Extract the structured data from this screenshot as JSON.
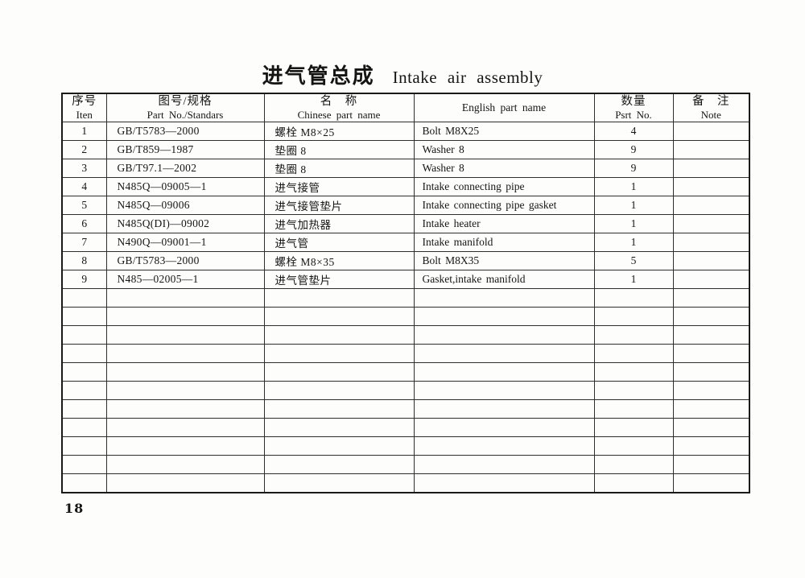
{
  "page": {
    "title_cn": "进气管总成",
    "title_en": "Intake air assembly",
    "page_number": "18"
  },
  "table": {
    "headers": {
      "item": {
        "cn": "序号",
        "en": "Iten"
      },
      "part_no": {
        "cn": "图号/规格",
        "en": "Part No./Standars"
      },
      "name_cn": {
        "cn": "名　称",
        "en": "Chinese part name"
      },
      "name_en": {
        "en": "English part name"
      },
      "qty": {
        "cn": "数量",
        "en": "Psrt No."
      },
      "note": {
        "cn": "备　注",
        "en": "Note"
      }
    },
    "rows": [
      {
        "item": "1",
        "part_no": "GB/T5783—2000",
        "name_cn": "螺栓 M8×25",
        "name_en": "Bolt M8X25",
        "qty": "4",
        "note": ""
      },
      {
        "item": "2",
        "part_no": "GB/T859—1987",
        "name_cn": "垫圈 8",
        "name_en": "Washer 8",
        "qty": "9",
        "note": ""
      },
      {
        "item": "3",
        "part_no": "GB/T97.1—2002",
        "name_cn": "垫圈 8",
        "name_en": "Washer 8",
        "qty": "9",
        "note": ""
      },
      {
        "item": "4",
        "part_no": "N485Q—09005—1",
        "name_cn": "进气接管",
        "name_en": "Intake connecting pipe",
        "qty": "1",
        "note": ""
      },
      {
        "item": "5",
        "part_no": "N485Q—09006",
        "name_cn": "进气接管垫片",
        "name_en": "Intake connecting pipe gasket",
        "qty": "1",
        "note": ""
      },
      {
        "item": "6",
        "part_no": "N485Q(DI)—09002",
        "name_cn": "进气加热器",
        "name_en": "Intake heater",
        "qty": "1",
        "note": ""
      },
      {
        "item": "7",
        "part_no": "N490Q—09001—1",
        "name_cn": "进气管",
        "name_en": "Intake manifold",
        "qty": "1",
        "note": ""
      },
      {
        "item": "8",
        "part_no": "GB/T5783—2000",
        "name_cn": "螺栓 M8×35",
        "name_en": "Bolt M8X35",
        "qty": "5",
        "note": ""
      },
      {
        "item": "9",
        "part_no": "N485—02005—1",
        "name_cn": "进气管垫片",
        "name_en": "Gasket,intake manifold",
        "qty": "1",
        "note": ""
      }
    ],
    "empty_row_count": 11
  }
}
